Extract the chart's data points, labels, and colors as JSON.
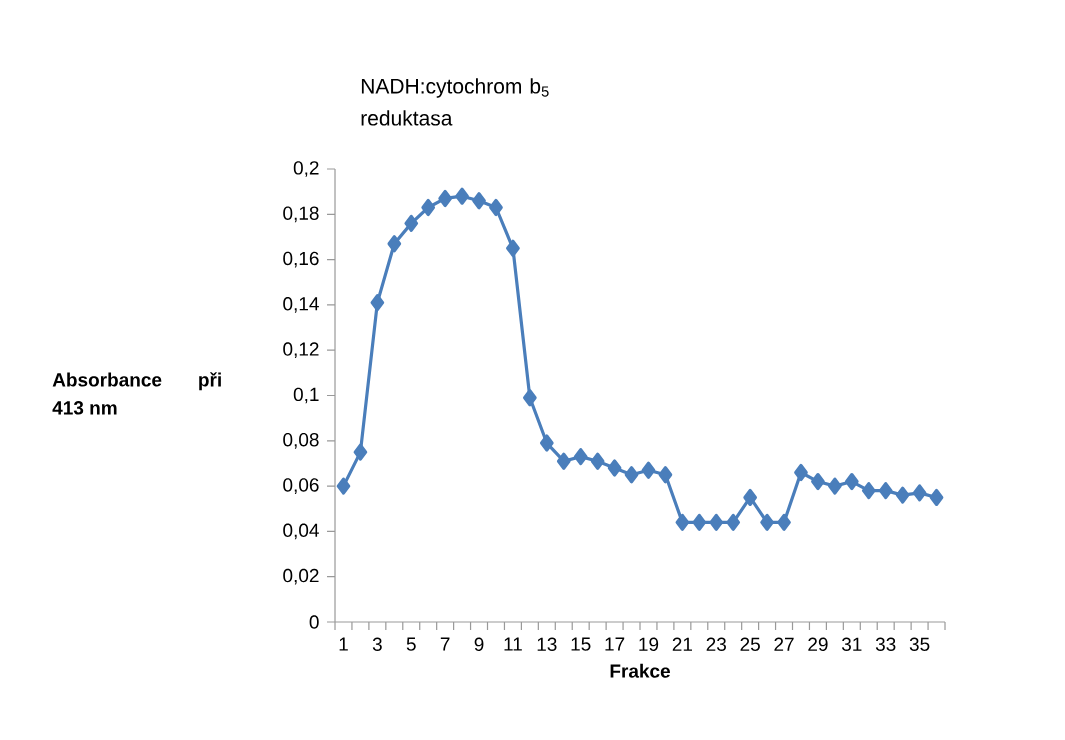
{
  "chart_data": {
    "type": "line",
    "title": "NADH:cytochrom b$_{5}$ reduktasa",
    "xlabel": "Frakce",
    "ylabel": "Absorbance při 413 nm",
    "categories": [
      "1",
      null,
      "3",
      null,
      "5",
      null,
      "7",
      null,
      "9",
      null,
      "11",
      null,
      "13",
      null,
      "15",
      null,
      "17",
      null,
      "19",
      null,
      "21",
      null,
      "23",
      null,
      "25",
      null,
      "27",
      null,
      "29",
      null,
      "31",
      null,
      "33",
      null,
      "35",
      null
    ],
    "series": [
      {
        "color": "#4a7ebb",
        "values": [
          0.06,
          0.075,
          0.141,
          0.167,
          0.176,
          0.183,
          0.187,
          0.188,
          0.186,
          0.183,
          0.165,
          0.099,
          0.079,
          0.071,
          0.073,
          0.071,
          0.068,
          0.065,
          0.067,
          0.065,
          0.044,
          0.044,
          0.044,
          0.044,
          0.055,
          0.044,
          0.044,
          0.066,
          0.062,
          0.06,
          0.062,
          0.058,
          0.058,
          0.056,
          0.057,
          0.055
        ]
      }
    ],
    "ylim": [
      0,
      0.2
    ],
    "yticks": [
      {
        "value": 0,
        "label": "0"
      },
      {
        "value": 0.02,
        "label": "0,02"
      },
      {
        "value": 0.04,
        "label": "0,04"
      },
      {
        "value": 0.06,
        "label": "0,06"
      },
      {
        "value": 0.08,
        "label": "0,08"
      },
      {
        "value": 0.1,
        "label": "0,1"
      },
      {
        "value": 0.12,
        "label": "0,12"
      },
      {
        "value": 0.14,
        "label": "0,14"
      },
      {
        "value": 0.16,
        "label": "0,16"
      },
      {
        "value": 0.18,
        "label": "0,18"
      },
      {
        "value": 0.2,
        "label": "0,2"
      }
    ],
    "marker": "diamond",
    "line_style": "solid"
  }
}
